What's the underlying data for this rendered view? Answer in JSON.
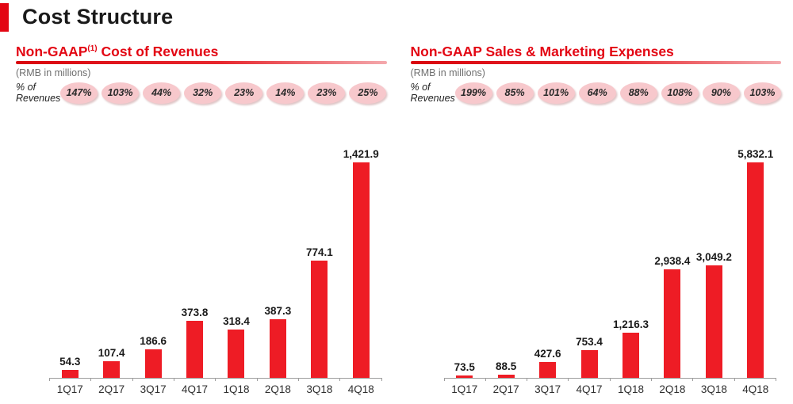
{
  "title": "Cost Structure",
  "colors": {
    "accent_red": "#e30613",
    "bar_red": "#ee1c25",
    "badge_pink": "#f7c8cc"
  },
  "panels": [
    {
      "title_prefix": "Non-GAAP",
      "title_sup": "(1)",
      "title_suffix": " Cost of Revenues",
      "units_note": "(RMB in millions)",
      "pct_label": "% of Revenues"
    },
    {
      "title_prefix": "Non-GAAP Sales & Marketing Expenses",
      "title_sup": "",
      "title_suffix": "",
      "units_note": "(RMB in millions)",
      "pct_label": "% of Revenues"
    }
  ],
  "chart_data": [
    {
      "type": "bar",
      "title": "Non-GAAP Cost of Revenues",
      "subtitle": "(RMB in millions)",
      "categories": [
        "1Q17",
        "2Q17",
        "3Q17",
        "4Q17",
        "1Q18",
        "2Q18",
        "3Q18",
        "4Q18"
      ],
      "values": [
        54.3,
        107.4,
        186.6,
        373.8,
        318.4,
        387.3,
        774.1,
        1421.9
      ],
      "value_labels": [
        "54.3",
        "107.4",
        "186.6",
        "373.8",
        "318.4",
        "387.3",
        "774.1",
        "1,421.9"
      ],
      "pct_of_revenues": [
        "147%",
        "103%",
        "44%",
        "32%",
        "23%",
        "14%",
        "23%",
        "25%"
      ],
      "xlabel": "",
      "ylabel": "RMB in millions",
      "ylim": [
        0,
        1500
      ],
      "grid": false,
      "legend": "none",
      "bar_color": "#ee1c25"
    },
    {
      "type": "bar",
      "title": "Non-GAAP Sales & Marketing Expenses",
      "subtitle": "(RMB in millions)",
      "categories": [
        "1Q17",
        "2Q17",
        "3Q17",
        "4Q17",
        "1Q18",
        "2Q18",
        "3Q18",
        "4Q18"
      ],
      "values": [
        73.5,
        88.5,
        427.6,
        753.4,
        1216.3,
        2938.4,
        3049.2,
        5832.1
      ],
      "value_labels": [
        "73.5",
        "88.5",
        "427.6",
        "753.4",
        "1,216.3",
        "2,938.4",
        "3,049.2",
        "5,832.1"
      ],
      "pct_of_revenues": [
        "199%",
        "85%",
        "101%",
        "64%",
        "88%",
        "108%",
        "90%",
        "103%"
      ],
      "xlabel": "",
      "ylabel": "RMB in millions",
      "ylim": [
        0,
        6000
      ],
      "grid": false,
      "legend": "none",
      "bar_color": "#ee1c25"
    }
  ]
}
